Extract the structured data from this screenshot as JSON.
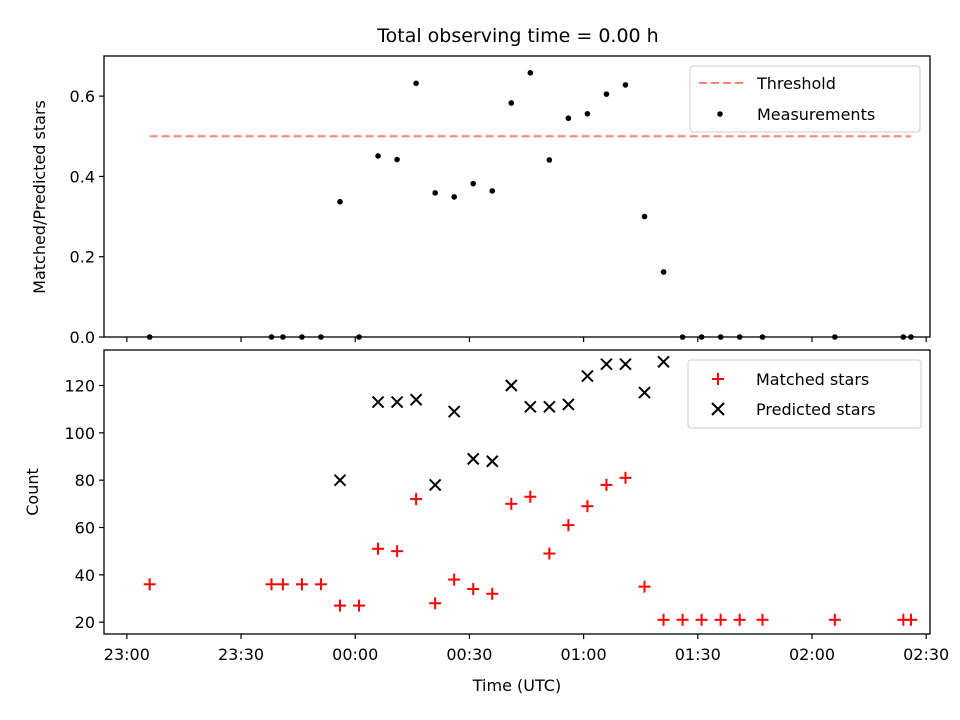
{
  "chart_data": {
    "title": "Total observing time = 0.00 h",
    "xlabel": "Time (UTC)",
    "x_tick_labels": [
      "23:00",
      "23:30",
      "00:00",
      "00:30",
      "01:00",
      "01:30",
      "02:00",
      "02:30"
    ],
    "x_tick_minutes": [
      -60,
      -30,
      0,
      30,
      60,
      90,
      120,
      150
    ],
    "xlim_minutes": [
      -66,
      151
    ],
    "panels": [
      {
        "type": "scatter",
        "ylabel": "Matched/Predicted stars",
        "ylim": [
          0,
          0.7
        ],
        "y_ticks": [
          0.0,
          0.2,
          0.4,
          0.6
        ],
        "y_tick_labels": [
          "0.0",
          "0.2",
          "0.4",
          "0.6"
        ],
        "legend_position": "top-right",
        "threshold": {
          "name": "Threshold",
          "y": 0.5,
          "x_from": "23:06",
          "x_to": "02:26",
          "color": "#ff7f7f"
        },
        "series": [
          {
            "name": "Measurements",
            "marker": "dot",
            "color": "#000000",
            "points": [
              [
                "23:06",
                0.0
              ],
              [
                "23:38",
                0.0
              ],
              [
                "23:41",
                0.0
              ],
              [
                "23:46",
                0.0
              ],
              [
                "23:51",
                0.0
              ],
              [
                "23:56",
                0.337
              ],
              [
                "00:01",
                0.0
              ],
              [
                "00:06",
                0.451
              ],
              [
                "00:11",
                0.442
              ],
              [
                "00:16",
                0.632
              ],
              [
                "00:21",
                0.359
              ],
              [
                "00:26",
                0.349
              ],
              [
                "00:31",
                0.382
              ],
              [
                "00:36",
                0.364
              ],
              [
                "00:41",
                0.583
              ],
              [
                "00:46",
                0.658
              ],
              [
                "00:51",
                0.441
              ],
              [
                "00:56",
                0.545
              ],
              [
                "01:01",
                0.556
              ],
              [
                "01:06",
                0.605
              ],
              [
                "01:11",
                0.628
              ],
              [
                "01:16",
                0.3
              ],
              [
                "01:21",
                0.162
              ],
              [
                "01:26",
                0.0
              ],
              [
                "01:31",
                0.0
              ],
              [
                "01:36",
                0.0
              ],
              [
                "01:41",
                0.0
              ],
              [
                "01:47",
                0.0
              ],
              [
                "02:06",
                0.0
              ],
              [
                "02:24",
                0.0
              ],
              [
                "02:26",
                0.0
              ]
            ]
          }
        ]
      },
      {
        "type": "scatter",
        "ylabel": "Count",
        "ylim": [
          15,
          135
        ],
        "y_ticks": [
          20,
          40,
          60,
          80,
          100,
          120
        ],
        "y_tick_labels": [
          "20",
          "40",
          "60",
          "80",
          "100",
          "120"
        ],
        "legend_position": "top-right",
        "series": [
          {
            "name": "Matched stars",
            "marker": "plus",
            "color": "#ff0000",
            "points": [
              [
                "23:06",
                36
              ],
              [
                "23:38",
                36
              ],
              [
                "23:41",
                36
              ],
              [
                "23:46",
                36
              ],
              [
                "23:51",
                36
              ],
              [
                "23:56",
                27
              ],
              [
                "00:01",
                27
              ],
              [
                "00:06",
                51
              ],
              [
                "00:11",
                50
              ],
              [
                "00:16",
                72
              ],
              [
                "00:21",
                28
              ],
              [
                "00:26",
                38
              ],
              [
                "00:31",
                34
              ],
              [
                "00:36",
                32
              ],
              [
                "00:41",
                70
              ],
              [
                "00:46",
                73
              ],
              [
                "00:51",
                49
              ],
              [
                "00:56",
                61
              ],
              [
                "01:01",
                69
              ],
              [
                "01:06",
                78
              ],
              [
                "01:11",
                81
              ],
              [
                "01:16",
                35
              ],
              [
                "01:21",
                21
              ],
              [
                "01:26",
                21
              ],
              [
                "01:31",
                21
              ],
              [
                "01:36",
                21
              ],
              [
                "01:41",
                21
              ],
              [
                "01:47",
                21
              ],
              [
                "02:06",
                21
              ],
              [
                "02:24",
                21
              ],
              [
                "02:26",
                21
              ]
            ]
          },
          {
            "name": "Predicted stars",
            "marker": "x",
            "color": "#000000",
            "points": [
              [
                "23:56",
                80
              ],
              [
                "00:06",
                113
              ],
              [
                "00:11",
                113
              ],
              [
                "00:16",
                114
              ],
              [
                "00:21",
                78
              ],
              [
                "00:26",
                109
              ],
              [
                "00:31",
                89
              ],
              [
                "00:36",
                88
              ],
              [
                "00:41",
                120
              ],
              [
                "00:46",
                111
              ],
              [
                "00:51",
                111
              ],
              [
                "00:56",
                112
              ],
              [
                "01:01",
                124
              ],
              [
                "01:06",
                129
              ],
              [
                "01:11",
                129
              ],
              [
                "01:16",
                117
              ],
              [
                "01:21",
                130
              ]
            ]
          }
        ]
      }
    ]
  }
}
